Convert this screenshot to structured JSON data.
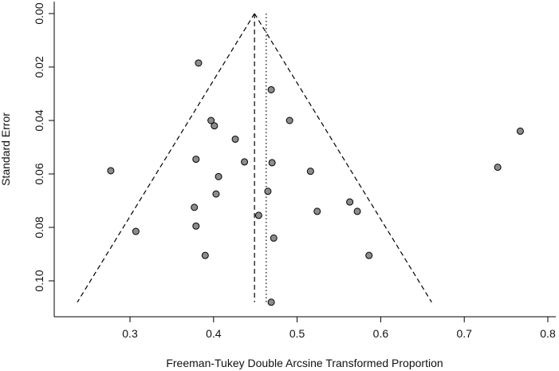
{
  "chart_data": {
    "type": "scatter",
    "title": "",
    "xlabel": "Freeman-Tukey Double Arcsine Transformed Proportion",
    "ylabel": "Standard Error",
    "xlim": [
      0.22,
      0.82
    ],
    "ylim": [
      0.0,
      0.111
    ],
    "y_reversed": true,
    "grid": false,
    "x_ticks": [
      0.3,
      0.4,
      0.5,
      0.6,
      0.7,
      0.8
    ],
    "x_tick_labels": [
      "0.3",
      "0.4",
      "0.5",
      "0.6",
      "0.7",
      "0.8"
    ],
    "y_ticks": [
      0.0,
      0.02,
      0.04,
      0.06,
      0.08,
      0.1
    ],
    "y_tick_labels": [
      "0.00",
      "0.02",
      "0.04",
      "0.06",
      "0.08",
      "0.10"
    ],
    "pooled_estimate_dashed": 0.449,
    "reference_line_dotted": 0.463,
    "funnel": {
      "apex": [
        0.449,
        0.0
      ],
      "left_base": [
        0.237,
        0.108
      ],
      "right_base": [
        0.661,
        0.108
      ]
    },
    "points": [
      {
        "x": 0.382,
        "y": 0.0185
      },
      {
        "x": 0.469,
        "y": 0.0285
      },
      {
        "x": 0.397,
        "y": 0.04
      },
      {
        "x": 0.491,
        "y": 0.04
      },
      {
        "x": 0.401,
        "y": 0.042
      },
      {
        "x": 0.767,
        "y": 0.044
      },
      {
        "x": 0.426,
        "y": 0.047
      },
      {
        "x": 0.379,
        "y": 0.0545
      },
      {
        "x": 0.437,
        "y": 0.0555
      },
      {
        "x": 0.47,
        "y": 0.0558
      },
      {
        "x": 0.74,
        "y": 0.0575
      },
      {
        "x": 0.277,
        "y": 0.0588
      },
      {
        "x": 0.516,
        "y": 0.059
      },
      {
        "x": 0.406,
        "y": 0.061
      },
      {
        "x": 0.465,
        "y": 0.0665
      },
      {
        "x": 0.403,
        "y": 0.0675
      },
      {
        "x": 0.563,
        "y": 0.0705
      },
      {
        "x": 0.377,
        "y": 0.0725
      },
      {
        "x": 0.524,
        "y": 0.074
      },
      {
        "x": 0.572,
        "y": 0.074
      },
      {
        "x": 0.454,
        "y": 0.0755
      },
      {
        "x": 0.379,
        "y": 0.0795
      },
      {
        "x": 0.307,
        "y": 0.0815
      },
      {
        "x": 0.472,
        "y": 0.084
      },
      {
        "x": 0.39,
        "y": 0.0905
      },
      {
        "x": 0.586,
        "y": 0.0905
      },
      {
        "x": 0.469,
        "y": 0.108
      }
    ],
    "colors": {
      "point_fill": "#8c8c8c",
      "point_stroke": "#000000",
      "line": "#000000"
    }
  }
}
